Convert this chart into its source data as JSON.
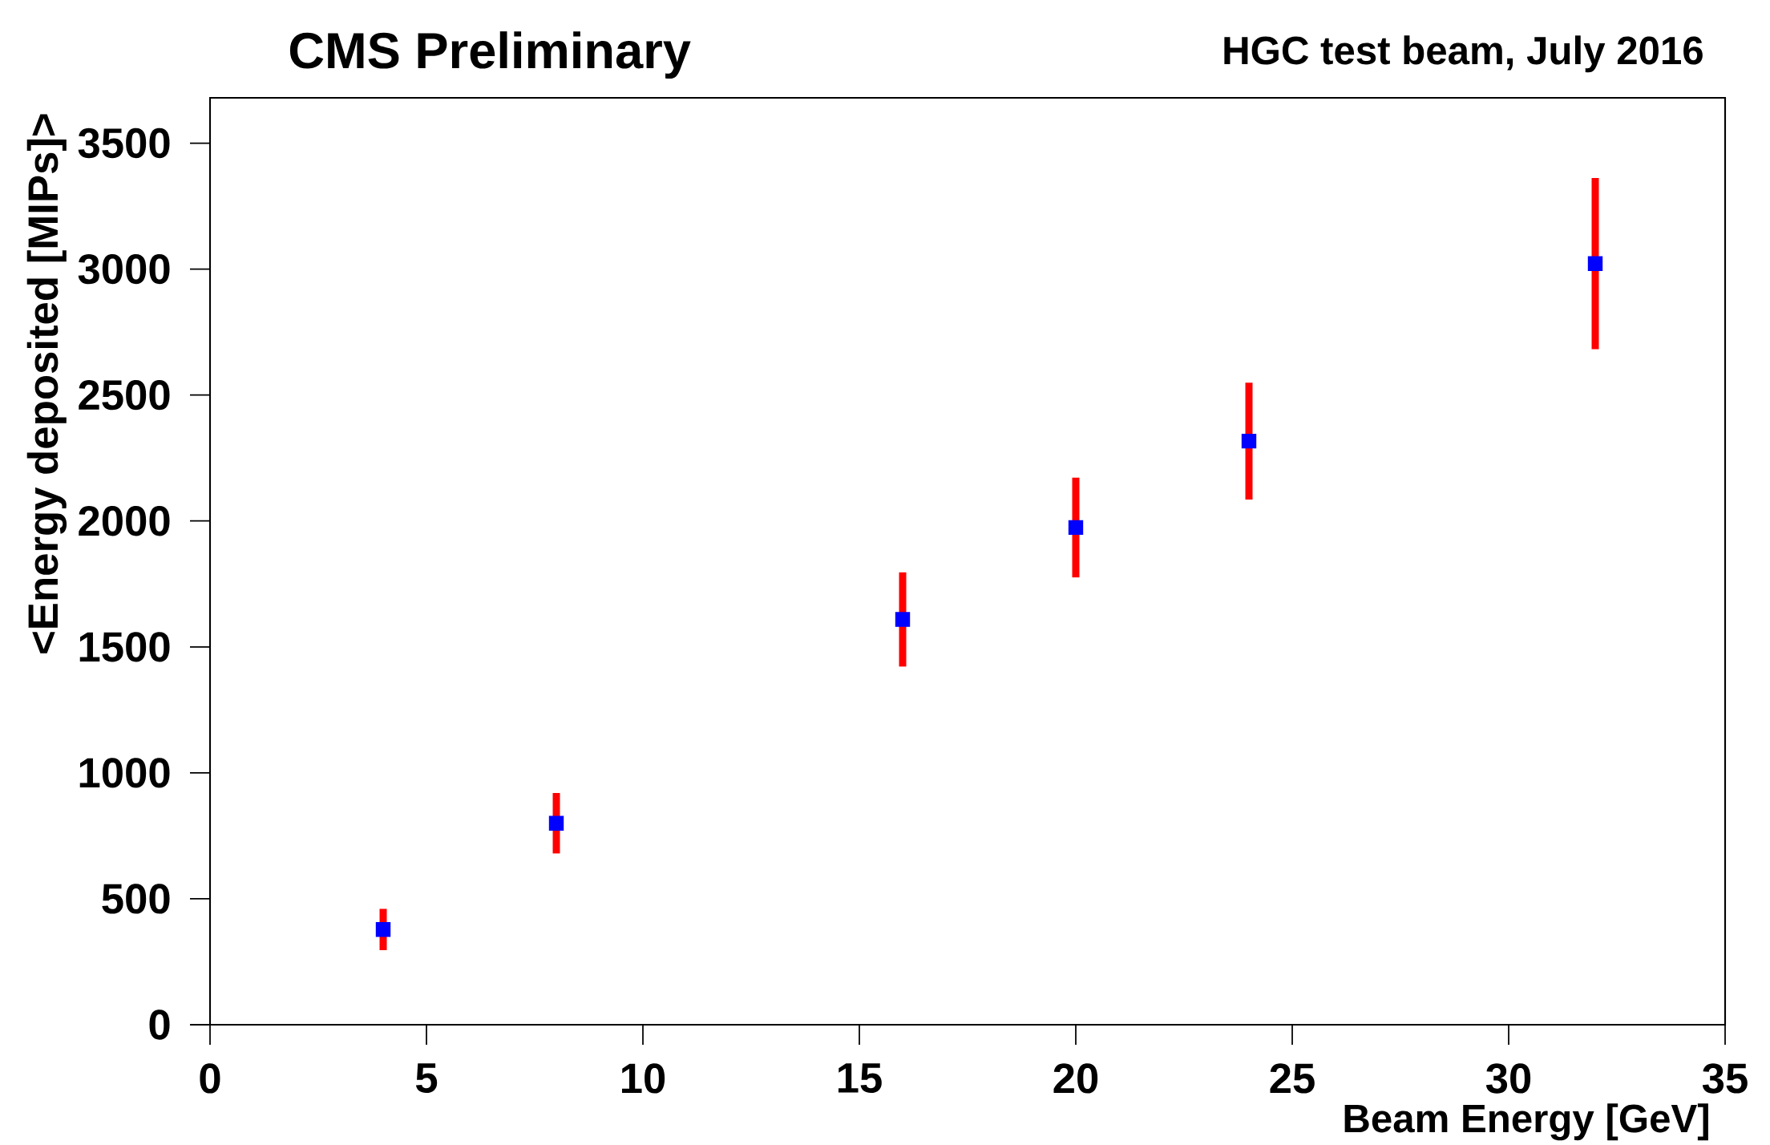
{
  "chart_data": {
    "type": "scatter",
    "title": "CMS Preliminary",
    "subtitle": "HGC test beam, July 2016",
    "xlabel": "Beam Energy [GeV]",
    "ylabel": "<Energy deposited [MIPs]>",
    "series": [
      {
        "color": "#0000ff",
        "x": [
          4,
          8,
          16,
          20,
          24,
          32
        ],
        "values": [
          378,
          800,
          1609,
          1974,
          2317,
          3022
        ],
        "errors": [
          82,
          120,
          187,
          198,
          232,
          340
        ]
      }
    ],
    "xlim": [
      0,
      35
    ],
    "xticks": [
      0,
      5,
      10,
      15,
      20,
      25,
      30,
      35
    ],
    "ylim": [
      0,
      3680
    ],
    "yticks": [
      0,
      500,
      1000,
      1500,
      2000,
      2500,
      3000,
      3500
    ],
    "marker": "square",
    "grid": false
  }
}
